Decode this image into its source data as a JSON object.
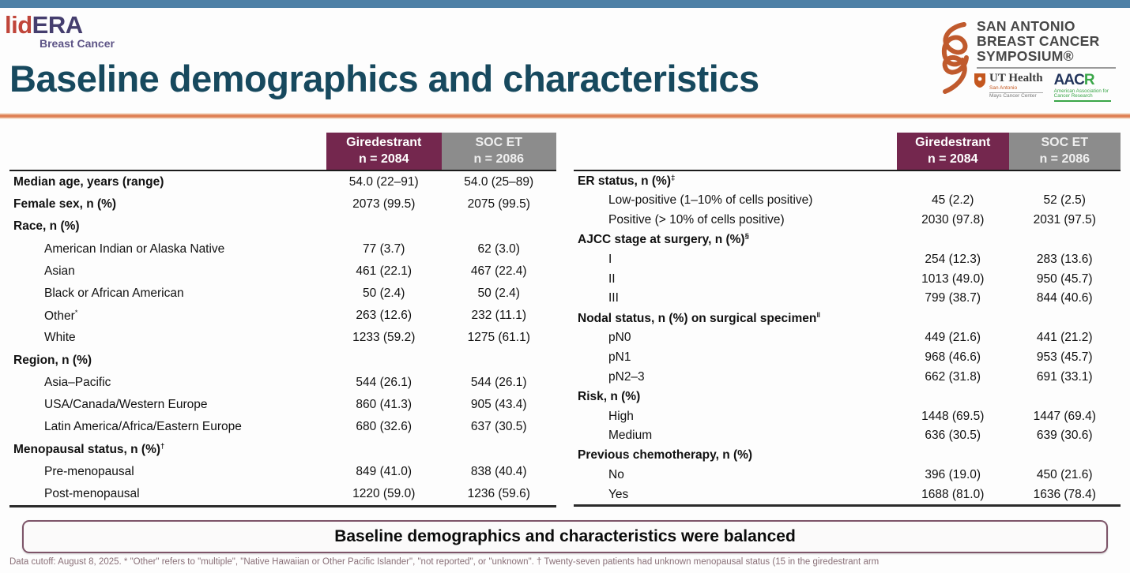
{
  "colors": {
    "topbar": "#4e80a6",
    "title": "#17495e",
    "accent-line": "#df8257",
    "arm1-header": "#74274e",
    "arm2-header": "#8c8c8c",
    "banner-border": "#7d5468",
    "footnote": "#8a7078",
    "lid-red": "#c0453a",
    "era-purple": "#453e6e",
    "sabcs-orange": "#c05a2d"
  },
  "logo": {
    "lid": "lid",
    "era": "ERA",
    "subtitle": "Breast Cancer"
  },
  "sabcs": {
    "line1": "SAN ANTONIO",
    "line2": "BREAST CANCER",
    "line3": "SYMPOSIUM®",
    "ut_name": "UT Health",
    "ut_sub1": "San Antonio",
    "ut_sub2": "Mays Cancer Center",
    "aacr_main": "AAC",
    "aacr_r": "R",
    "aacr_sub": "American Association for Cancer Research"
  },
  "title": "Baseline demographics and characteristics",
  "columns": {
    "arm1_name": "Giredestrant",
    "arm1_n": "n = 2084",
    "arm2_name": "SOC ET",
    "arm2_n": "n = 2086"
  },
  "tables": [
    {
      "rows": [
        {
          "label": "Median age, years (range)",
          "bold": true,
          "v1": "54.0 (22–91)",
          "v2": "54.0 (25–89)"
        },
        {
          "label": "Female sex, n (%)",
          "bold": true,
          "v1": "2073 (99.5)",
          "v2": "2075 (99.5)"
        },
        {
          "label": "Race, n (%)",
          "bold": true,
          "v1": "",
          "v2": ""
        },
        {
          "label": "American Indian or Alaska Native",
          "indent": true,
          "v1": "77 (3.7)",
          "v2": "62 (3.0)"
        },
        {
          "label": "Asian",
          "indent": true,
          "v1": "461 (22.1)",
          "v2": "467 (22.4)"
        },
        {
          "label": "Black or African American",
          "indent": true,
          "v1": "50 (2.4)",
          "v2": "50 (2.4)"
        },
        {
          "label": "Other",
          "sup": "*",
          "indent": true,
          "v1": "263 (12.6)",
          "v2": "232 (11.1)"
        },
        {
          "label": "White",
          "indent": true,
          "v1": "1233 (59.2)",
          "v2": "1275 (61.1)"
        },
        {
          "label": "Region, n (%)",
          "bold": true,
          "v1": "",
          "v2": ""
        },
        {
          "label": "Asia–Pacific",
          "indent": true,
          "v1": "544 (26.1)",
          "v2": "544 (26.1)"
        },
        {
          "label": "USA/Canada/Western Europe",
          "indent": true,
          "v1": "860 (41.3)",
          "v2": "905 (43.4)"
        },
        {
          "label": "Latin America/Africa/Eastern Europe",
          "indent": true,
          "v1": "680 (32.6)",
          "v2": "637 (30.5)"
        },
        {
          "label": "Menopausal status, n (%)",
          "sup": "†",
          "bold": true,
          "v1": "",
          "v2": ""
        },
        {
          "label": "Pre-menopausal",
          "indent": true,
          "v1": "849 (41.0)",
          "v2": "838 (40.4)"
        },
        {
          "label": "Post-menopausal",
          "indent": true,
          "v1": "1220 (59.0)",
          "v2": "1236 (59.6)"
        }
      ]
    },
    {
      "rows": [
        {
          "label": "ER status, n (%)",
          "sup": "‡",
          "bold": true,
          "v1": "",
          "v2": ""
        },
        {
          "label": "Low-positive (1–10% of cells positive)",
          "indent": true,
          "v1": "45 (2.2)",
          "v2": "52 (2.5)"
        },
        {
          "label": "Positive (> 10% of cells positive)",
          "indent": true,
          "v1": "2030 (97.8)",
          "v2": "2031 (97.5)"
        },
        {
          "label": "AJCC stage at surgery, n (%)",
          "sup": "§",
          "bold": true,
          "v1": "",
          "v2": ""
        },
        {
          "label": "I",
          "indent": true,
          "v1": "254 (12.3)",
          "v2": "283 (13.6)"
        },
        {
          "label": "II",
          "indent": true,
          "v1": "1013 (49.0)",
          "v2": "950 (45.7)"
        },
        {
          "label": "III",
          "indent": true,
          "v1": "799 (38.7)",
          "v2": "844 (40.6)"
        },
        {
          "label": "Nodal status, n (%) on surgical specimen",
          "sup": "‖",
          "bold": true,
          "v1": "",
          "v2": ""
        },
        {
          "label": "pN0",
          "indent": true,
          "v1": "449 (21.6)",
          "v2": "441 (21.2)"
        },
        {
          "label": "pN1",
          "indent": true,
          "v1": "968 (46.6)",
          "v2": "953 (45.7)"
        },
        {
          "label": "pN2–3",
          "indent": true,
          "v1": "662 (31.8)",
          "v2": "691 (33.1)"
        },
        {
          "label": "Risk, n (%)",
          "bold": true,
          "v1": "",
          "v2": ""
        },
        {
          "label": "High",
          "indent": true,
          "v1": "1448 (69.5)",
          "v2": "1447 (69.4)"
        },
        {
          "label": "Medium",
          "indent": true,
          "v1": "636 (30.5)",
          "v2": "639 (30.6)"
        },
        {
          "label": "Previous chemotherapy, n (%)",
          "bold": true,
          "v1": "",
          "v2": ""
        },
        {
          "label": "No",
          "indent": true,
          "v1": "396 (19.0)",
          "v2": "450 (21.6)"
        },
        {
          "label": "Yes",
          "indent": true,
          "v1": "1688 (81.0)",
          "v2": "1636 (78.4)"
        }
      ]
    }
  ],
  "banner": "Baseline demographics and characteristics were balanced",
  "footnote": "Data cutoff: August 8, 2025. * \"Other\" refers to \"multiple\", \"Native Hawaiian or Other Pacific Islander\", \"not reported\", or \"unknown\". † Twenty-seven patients had unknown menopausal status (15 in the giredestrant arm"
}
